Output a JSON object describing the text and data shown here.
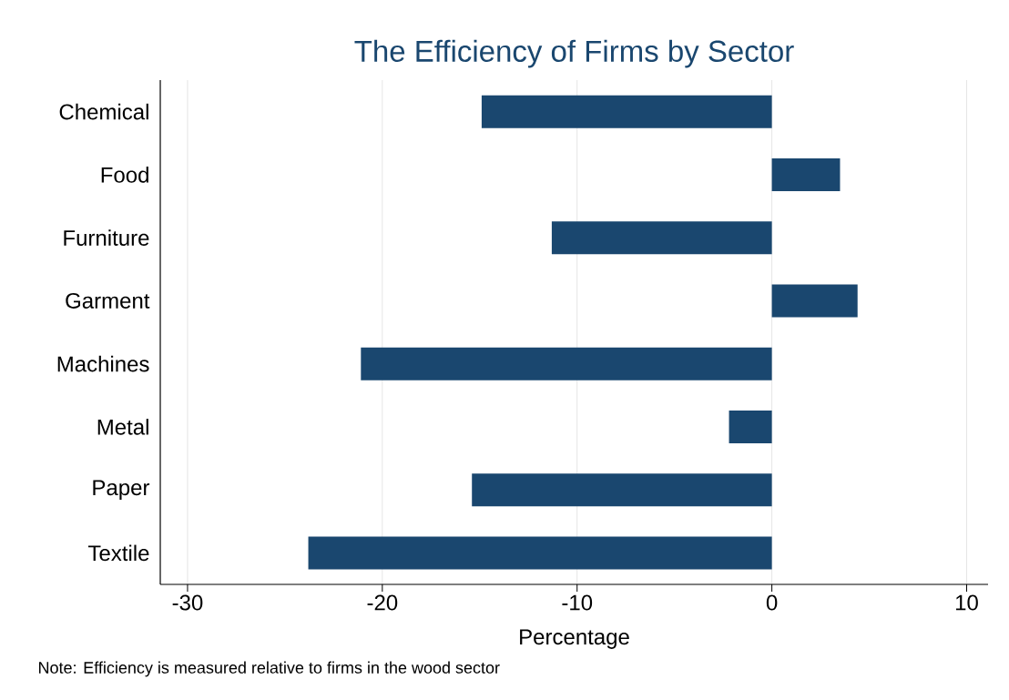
{
  "chart_data": {
    "type": "bar",
    "orientation": "horizontal",
    "title": "The Efficiency of Firms by Sector",
    "xlabel": "Percentage",
    "categories": [
      "Chemical",
      "Food",
      "Furniture",
      "Garment",
      "Machines",
      "Metal",
      "Paper",
      "Textile"
    ],
    "values": [
      -14.9,
      3.5,
      -11.3,
      4.4,
      -21.1,
      -2.2,
      -15.4,
      -23.8
    ],
    "color": "#1a476f",
    "xlim": [
      -31.4,
      11.1
    ],
    "xticks": [
      -30,
      -20,
      -10,
      0,
      10
    ],
    "grid": "x",
    "annotations": [
      "Note: Efficiency is measured relative to firms in the wood sector"
    ]
  }
}
